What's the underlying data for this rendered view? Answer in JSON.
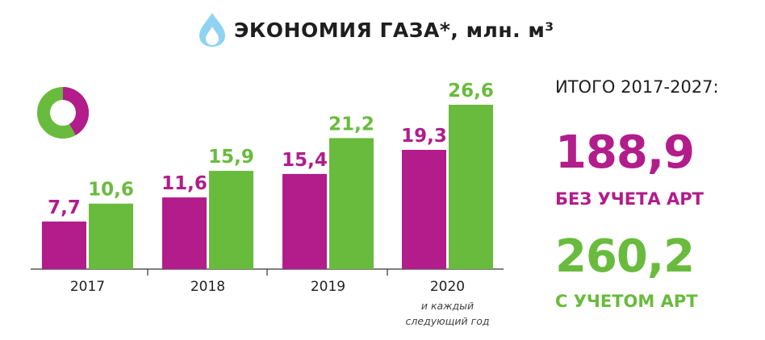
{
  "title": "ЭКОНОМИЯ ГАЗА*, млн. м³",
  "icons": {
    "title_icon": "gas-flame-icon",
    "corner_icon": "donut-chart-icon"
  },
  "colors": {
    "magenta": "#b21c8b",
    "green": "#69bb3d",
    "flame": "#8fd3f2"
  },
  "chart_data": {
    "type": "bar",
    "categories": [
      "2017",
      "2018",
      "2019",
      "2020"
    ],
    "series": [
      {
        "values": [
          7.7,
          11.6,
          15.4,
          19.3
        ],
        "labels": [
          "7,7",
          "11,6",
          "15,4",
          "19,3"
        ],
        "color": "#b21c8b"
      },
      {
        "values": [
          10.6,
          15.9,
          21.2,
          26.6
        ],
        "labels": [
          "10,6",
          "15,9",
          "21,2",
          "26,6"
        ],
        "color": "#69bb3d"
      }
    ],
    "annotation": "и каждый следующий год",
    "annotation_lines": [
      "и каждый",
      "следующий год"
    ],
    "ylim": [
      0,
      26.6
    ],
    "grid": false
  },
  "summary": {
    "heading": "ИТОГО 2017-2027:",
    "without_art_value": "188,9",
    "without_art_label": "БЕЗ УЧЕТА АРТ",
    "with_art_value": "260,2",
    "with_art_label": "С УЧЕТОМ АРТ"
  }
}
